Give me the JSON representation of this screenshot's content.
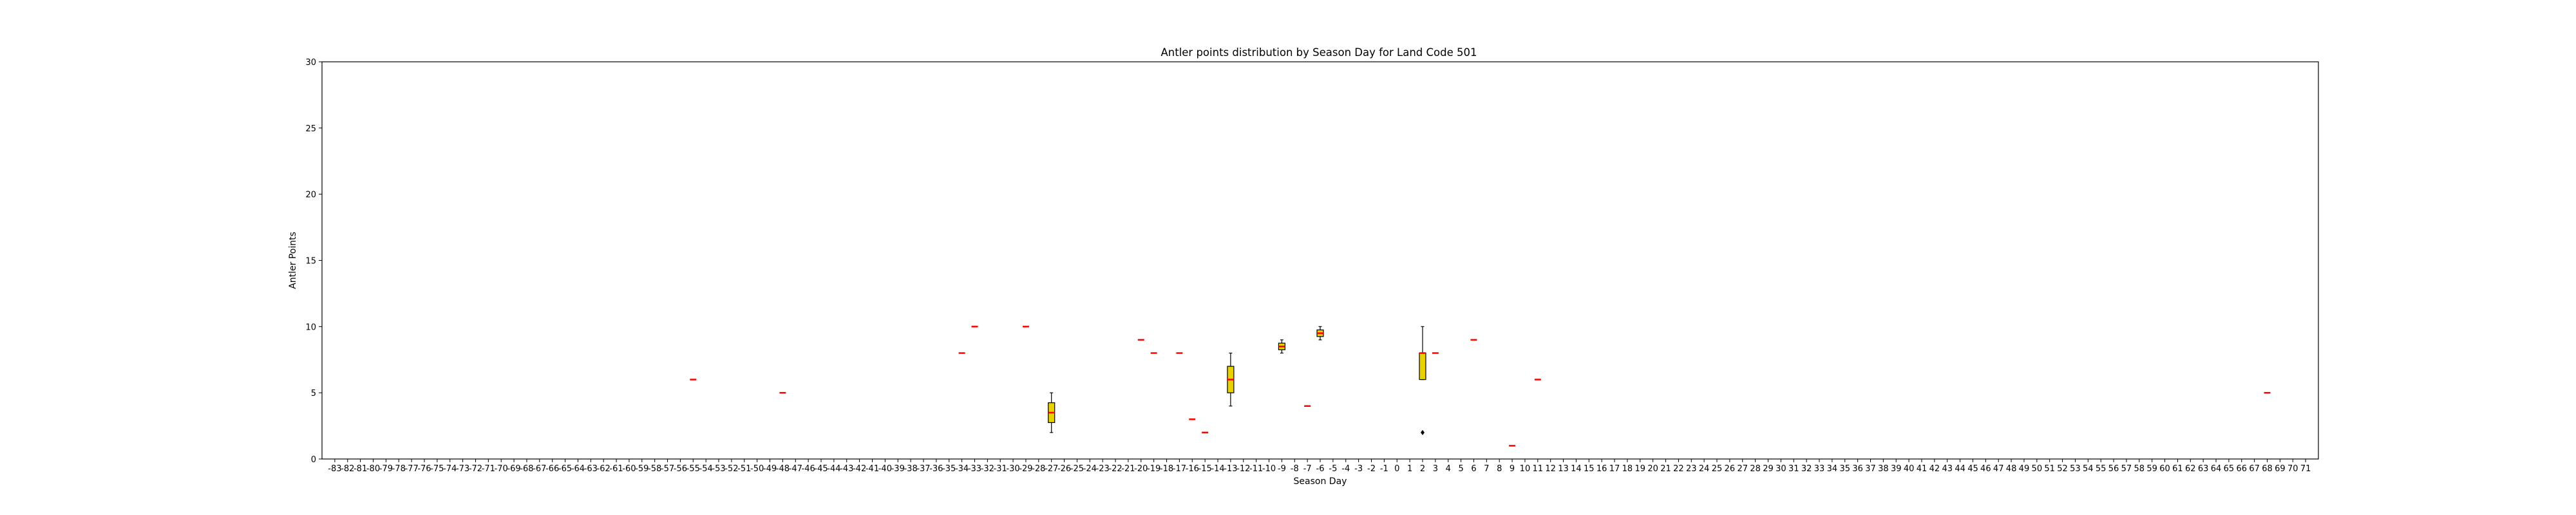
{
  "chart_data": {
    "type": "boxplot",
    "title": "Antler points distribution by Season Day for Land Code 501",
    "xlabel": "Season Day",
    "ylabel": "Antler Points",
    "ylim": [
      0,
      30
    ],
    "yticks": [
      0,
      5,
      10,
      15,
      20,
      25,
      30
    ],
    "x_categories_range": [
      -83,
      71
    ],
    "grid": false,
    "colors": {
      "box_fill": "#e8d100",
      "box_edge": "#000000",
      "median": "#ff0000",
      "whisker": "#000000"
    },
    "boxes": [
      {
        "day": -55,
        "q1": 6,
        "median": 6,
        "q3": 6,
        "whislo": 6,
        "whishi": 6
      },
      {
        "day": -48,
        "q1": 5,
        "median": 5,
        "q3": 5,
        "whislo": 5,
        "whishi": 5
      },
      {
        "day": -34,
        "q1": 8,
        "median": 8,
        "q3": 8,
        "whislo": 8,
        "whishi": 8
      },
      {
        "day": -33,
        "q1": 10,
        "median": 10,
        "q3": 10,
        "whislo": 10,
        "whishi": 10
      },
      {
        "day": -29,
        "q1": 10,
        "median": 10,
        "q3": 10,
        "whislo": 10,
        "whishi": 10
      },
      {
        "day": -27,
        "q1": 2.75,
        "median": 3.5,
        "q3": 4.25,
        "whislo": 2,
        "whishi": 5
      },
      {
        "day": -20,
        "q1": 9,
        "median": 9,
        "q3": 9,
        "whislo": 9,
        "whishi": 9
      },
      {
        "day": -19,
        "q1": 8,
        "median": 8,
        "q3": 8,
        "whislo": 8,
        "whishi": 8
      },
      {
        "day": -17,
        "q1": 8,
        "median": 8,
        "q3": 8,
        "whislo": 8,
        "whishi": 8
      },
      {
        "day": -16,
        "q1": 3,
        "median": 3,
        "q3": 3,
        "whislo": 3,
        "whishi": 3
      },
      {
        "day": -15,
        "q1": 2,
        "median": 2,
        "q3": 2,
        "whislo": 2,
        "whishi": 2
      },
      {
        "day": -13,
        "q1": 5,
        "median": 6,
        "q3": 7,
        "whislo": 4,
        "whishi": 8
      },
      {
        "day": -9,
        "q1": 8.25,
        "median": 8.5,
        "q3": 8.75,
        "whislo": 8,
        "whishi": 9
      },
      {
        "day": -7,
        "q1": 4,
        "median": 4,
        "q3": 4,
        "whislo": 4,
        "whishi": 4
      },
      {
        "day": -6,
        "q1": 9.25,
        "median": 9.5,
        "q3": 9.75,
        "whislo": 9,
        "whishi": 10
      },
      {
        "day": 2,
        "q1": 6,
        "median": 8,
        "q3": 8,
        "whislo": 6,
        "whishi": 10,
        "fliers": [
          2
        ]
      },
      {
        "day": 3,
        "q1": 8,
        "median": 8,
        "q3": 8,
        "whislo": 8,
        "whishi": 8
      },
      {
        "day": 6,
        "q1": 9,
        "median": 9,
        "q3": 9,
        "whislo": 9,
        "whishi": 9
      },
      {
        "day": 9,
        "q1": 1,
        "median": 1,
        "q3": 1,
        "whislo": 1,
        "whishi": 1
      },
      {
        "day": 11,
        "q1": 6,
        "median": 6,
        "q3": 6,
        "whislo": 6,
        "whishi": 6
      },
      {
        "day": 68,
        "q1": 5,
        "median": 5,
        "q3": 5,
        "whislo": 5,
        "whishi": 5
      }
    ]
  }
}
